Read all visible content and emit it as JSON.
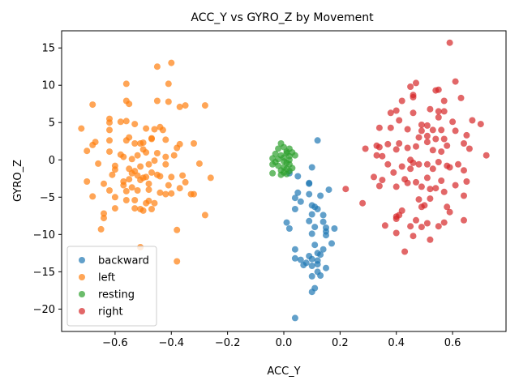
{
  "chart_data": {
    "type": "scatter",
    "title": "ACC_Y vs GYRO_Z by Movement",
    "xlabel": "ACC_Y",
    "ylabel": "GYRO_Z",
    "xlim": [
      -0.79,
      0.79
    ],
    "ylim": [
      -23,
      17.3
    ],
    "xticks": [
      -0.6,
      -0.4,
      -0.2,
      0.0,
      0.2,
      0.4,
      0.6
    ],
    "xtick_labels": [
      "−0.6",
      "−0.4",
      "−0.2",
      "0.0",
      "0.2",
      "0.4",
      "0.6"
    ],
    "yticks": [
      -20,
      -15,
      -10,
      -5,
      0,
      5,
      10,
      15
    ],
    "ytick_labels": [
      "−20",
      "−15",
      "−10",
      "−5",
      "0",
      "5",
      "10",
      "15"
    ],
    "grid": false,
    "legend_position": "lower-left",
    "series": [
      {
        "name": "backward",
        "color": "#1f77b4",
        "points": [
          [
            0.12,
            2.6
          ],
          [
            0.1,
            -1.0
          ],
          [
            0.02,
            -1.8
          ],
          [
            0.05,
            -2.2
          ],
          [
            0.09,
            -3.1
          ],
          [
            0.09,
            -3.2
          ],
          [
            0.05,
            -4.4
          ],
          [
            0.09,
            -4.6
          ],
          [
            0.13,
            -4.8
          ],
          [
            0.16,
            -4.0
          ],
          [
            0.04,
            -5.1
          ],
          [
            0.06,
            -5.6
          ],
          [
            0.1,
            -6.1
          ],
          [
            0.11,
            -6.3
          ],
          [
            0.12,
            -6.6
          ],
          [
            0.04,
            -6.6
          ],
          [
            0.1,
            -7.3
          ],
          [
            0.14,
            -7.4
          ],
          [
            0.01,
            -8.4
          ],
          [
            0.09,
            -8.2
          ],
          [
            0.14,
            -8.3
          ],
          [
            0.02,
            -9.2
          ],
          [
            0.11,
            -9.0
          ],
          [
            0.15,
            -9.1
          ],
          [
            0.18,
            -9.2
          ],
          [
            0.15,
            -9.6
          ],
          [
            0.1,
            -9.9
          ],
          [
            0.15,
            -10.1
          ],
          [
            0.11,
            -11.4
          ],
          [
            0.17,
            -11.2
          ],
          [
            0.04,
            -12.0
          ],
          [
            0.12,
            -12.5
          ],
          [
            0.14,
            -12.0
          ],
          [
            0.13,
            -12.7
          ],
          [
            0.09,
            -12.9
          ],
          [
            0.04,
            -13.2
          ],
          [
            0.06,
            -13.4
          ],
          [
            0.1,
            -13.3
          ],
          [
            0.12,
            -13.5
          ],
          [
            0.08,
            -13.8
          ],
          [
            0.07,
            -14.1
          ],
          [
            0.12,
            -14.0
          ],
          [
            0.1,
            -14.2
          ],
          [
            0.15,
            -14.5
          ],
          [
            0.12,
            -15.0
          ],
          [
            0.1,
            -15.6
          ],
          [
            0.13,
            -15.5
          ],
          [
            0.11,
            -17.2
          ],
          [
            0.1,
            -17.7
          ],
          [
            0.04,
            -21.2
          ]
        ]
      },
      {
        "name": "left",
        "color": "#ff7f0e",
        "points": [
          [
            -0.4,
            13.0
          ],
          [
            -0.45,
            12.5
          ],
          [
            -0.56,
            10.2
          ],
          [
            -0.41,
            10.2
          ],
          [
            -0.68,
            7.4
          ],
          [
            -0.56,
            7.9
          ],
          [
            -0.55,
            7.5
          ],
          [
            -0.45,
            7.9
          ],
          [
            -0.41,
            7.8
          ],
          [
            -0.37,
            7.1
          ],
          [
            -0.35,
            7.3
          ],
          [
            -0.28,
            7.3
          ],
          [
            -0.62,
            5.5
          ],
          [
            -0.62,
            5.0
          ],
          [
            -0.58,
            5.1
          ],
          [
            -0.56,
            5.2
          ],
          [
            -0.53,
            4.8
          ],
          [
            -0.49,
            4.2
          ],
          [
            -0.46,
            4.1
          ],
          [
            -0.44,
            4.4
          ],
          [
            -0.43,
            4.0
          ],
          [
            -0.72,
            4.2
          ],
          [
            -0.62,
            4.0
          ],
          [
            -0.67,
            2.4
          ],
          [
            -0.68,
            2.0
          ],
          [
            -0.7,
            1.2
          ],
          [
            -0.62,
            2.6
          ],
          [
            -0.56,
            2.6
          ],
          [
            -0.55,
            3.0
          ],
          [
            -0.53,
            2.2
          ],
          [
            -0.51,
            2.2
          ],
          [
            -0.5,
            2.3
          ],
          [
            -0.47,
            2.9
          ],
          [
            -0.47,
            2.8
          ],
          [
            -0.42,
            2.7
          ],
          [
            -0.37,
            2.1
          ],
          [
            -0.32,
            2.2
          ],
          [
            -0.38,
            1.6
          ],
          [
            -0.5,
            1.4
          ],
          [
            -0.49,
            1.0
          ],
          [
            -0.52,
            0.6
          ],
          [
            -0.58,
            0.7
          ],
          [
            -0.57,
            0.4
          ],
          [
            -0.62,
            1.1
          ],
          [
            -0.54,
            0.1
          ],
          [
            -0.45,
            0.9
          ],
          [
            -0.42,
            0.4
          ],
          [
            -0.39,
            0.6
          ],
          [
            -0.46,
            -0.1
          ],
          [
            -0.42,
            -0.6
          ],
          [
            -0.48,
            -0.6
          ],
          [
            -0.51,
            -0.9
          ],
          [
            -0.55,
            -1.2
          ],
          [
            -0.6,
            -0.8
          ],
          [
            -0.6,
            -1.3
          ],
          [
            -0.66,
            -0.5
          ],
          [
            -0.3,
            -0.5
          ],
          [
            -0.53,
            -1.5
          ],
          [
            -0.54,
            -1.8
          ],
          [
            -0.52,
            -2.1
          ],
          [
            -0.47,
            -1.7
          ],
          [
            -0.45,
            -2.0
          ],
          [
            -0.49,
            -2.3
          ],
          [
            -0.51,
            -2.7
          ],
          [
            -0.55,
            -2.6
          ],
          [
            -0.57,
            -2.9
          ],
          [
            -0.5,
            -2.4
          ],
          [
            -0.44,
            -2.2
          ],
          [
            -0.4,
            -2.3
          ],
          [
            -0.36,
            -2.1
          ],
          [
            -0.26,
            -2.4
          ],
          [
            -0.35,
            -3.0
          ],
          [
            -0.41,
            -3.4
          ],
          [
            -0.48,
            -3.2
          ],
          [
            -0.54,
            -3.7
          ],
          [
            -0.57,
            -3.4
          ],
          [
            -0.61,
            -2.0
          ],
          [
            -0.64,
            -3.2
          ],
          [
            -0.7,
            -2.9
          ],
          [
            -0.62,
            -4.1
          ],
          [
            -0.56,
            -4.2
          ],
          [
            -0.52,
            -4.1
          ],
          [
            -0.48,
            -4.0
          ],
          [
            -0.44,
            -4.4
          ],
          [
            -0.42,
            -4.6
          ],
          [
            -0.4,
            -4.5
          ],
          [
            -0.37,
            -3.8
          ],
          [
            -0.32,
            -4.6
          ],
          [
            -0.33,
            -4.6
          ],
          [
            -0.68,
            -4.9
          ],
          [
            -0.6,
            -5.0
          ],
          [
            -0.56,
            -5.4
          ],
          [
            -0.53,
            -5.4
          ],
          [
            -0.48,
            -5.5
          ],
          [
            -0.46,
            -5.8
          ],
          [
            -0.49,
            -5.8
          ],
          [
            -0.64,
            -7.2
          ],
          [
            -0.64,
            -7.8
          ],
          [
            -0.6,
            -6.5
          ],
          [
            -0.53,
            -6.5
          ],
          [
            -0.51,
            -6.6
          ],
          [
            -0.5,
            -6.8
          ],
          [
            -0.47,
            -6.6
          ],
          [
            -0.28,
            -7.4
          ],
          [
            -0.65,
            -9.3
          ],
          [
            -0.38,
            -9.4
          ],
          [
            -0.51,
            -11.7
          ],
          [
            -0.38,
            -13.6
          ]
        ]
      },
      {
        "name": "resting",
        "color": "#2ca02c",
        "points": [
          [
            -0.01,
            2.2
          ],
          [
            0.0,
            1.7
          ],
          [
            -0.02,
            1.5
          ],
          [
            0.02,
            1.5
          ],
          [
            0.03,
            1.0
          ],
          [
            -0.03,
            0.8
          ],
          [
            0.01,
            1.1
          ],
          [
            -0.01,
            0.6
          ],
          [
            0.0,
            0.3
          ],
          [
            0.02,
            0.5
          ],
          [
            0.04,
            0.6
          ],
          [
            -0.04,
            0.2
          ],
          [
            -0.03,
            -0.3
          ],
          [
            -0.04,
            -0.6
          ],
          [
            0.0,
            -0.2
          ],
          [
            0.01,
            -0.4
          ],
          [
            0.02,
            -0.6
          ],
          [
            -0.02,
            -0.8
          ],
          [
            0.0,
            -1.0
          ],
          [
            0.03,
            -1.1
          ],
          [
            0.01,
            -1.2
          ],
          [
            -0.01,
            -1.4
          ],
          [
            0.02,
            -1.5
          ],
          [
            0.0,
            -1.7
          ],
          [
            -0.04,
            -1.8
          ],
          [
            0.01,
            -1.9
          ],
          [
            -0.01,
            -2.0
          ],
          [
            0.02,
            0.0
          ],
          [
            -0.02,
            0.1
          ],
          [
            0.01,
            0.9
          ]
        ]
      },
      {
        "name": "right",
        "color": "#d62728",
        "points": [
          [
            0.59,
            15.7
          ],
          [
            0.61,
            10.5
          ],
          [
            0.47,
            10.3
          ],
          [
            0.45,
            9.8
          ],
          [
            0.55,
            9.4
          ],
          [
            0.54,
            9.3
          ],
          [
            0.46,
            8.7
          ],
          [
            0.46,
            8.4
          ],
          [
            0.57,
            7.9
          ],
          [
            0.42,
            7.9
          ],
          [
            0.63,
            8.3
          ],
          [
            0.4,
            6.6
          ],
          [
            0.38,
            6.3
          ],
          [
            0.46,
            6.3
          ],
          [
            0.52,
            6.8
          ],
          [
            0.55,
            6.5
          ],
          [
            0.57,
            6.5
          ],
          [
            0.41,
            5.3
          ],
          [
            0.49,
            4.7
          ],
          [
            0.51,
            4.6
          ],
          [
            0.55,
            5.7
          ],
          [
            0.6,
            5.1
          ],
          [
            0.67,
            5.3
          ],
          [
            0.7,
            4.8
          ],
          [
            0.34,
            4.3
          ],
          [
            0.38,
            4.3
          ],
          [
            0.44,
            4.1
          ],
          [
            0.49,
            3.9
          ],
          [
            0.53,
            4.0
          ],
          [
            0.56,
            4.0
          ],
          [
            0.61,
            3.9
          ],
          [
            0.48,
            3.0
          ],
          [
            0.51,
            3.2
          ],
          [
            0.54,
            2.8
          ],
          [
            0.57,
            2.8
          ],
          [
            0.65,
            3.3
          ],
          [
            0.37,
            2.1
          ],
          [
            0.41,
            2.2
          ],
          [
            0.47,
            1.8
          ],
          [
            0.51,
            2.4
          ],
          [
            0.58,
            1.9
          ],
          [
            0.64,
            2.2
          ],
          [
            0.33,
            1.9
          ],
          [
            0.34,
            1.7
          ],
          [
            0.29,
            1.5
          ],
          [
            0.4,
            1.4
          ],
          [
            0.44,
            1.6
          ],
          [
            0.53,
            1.3
          ],
          [
            0.56,
            1.1
          ],
          [
            0.66,
            1.5
          ],
          [
            0.72,
            0.6
          ],
          [
            0.33,
            0.6
          ],
          [
            0.35,
            0.5
          ],
          [
            0.45,
            0.0
          ],
          [
            0.46,
            -0.4
          ],
          [
            0.48,
            -0.6
          ],
          [
            0.51,
            -0.6
          ],
          [
            0.55,
            -0.3
          ],
          [
            0.58,
            -0.8
          ],
          [
            0.62,
            -0.6
          ],
          [
            0.37,
            -0.6
          ],
          [
            0.42,
            -0.9
          ],
          [
            0.45,
            -1.2
          ],
          [
            0.53,
            -1.2
          ],
          [
            0.59,
            -1.0
          ],
          [
            0.64,
            -1.4
          ],
          [
            0.32,
            -2.3
          ],
          [
            0.35,
            -2.7
          ],
          [
            0.39,
            -1.7
          ],
          [
            0.43,
            -2.6
          ],
          [
            0.47,
            -3.0
          ],
          [
            0.51,
            -2.4
          ],
          [
            0.56,
            -2.8
          ],
          [
            0.61,
            -3.4
          ],
          [
            0.65,
            -2.9
          ],
          [
            0.34,
            -3.5
          ],
          [
            0.4,
            -3.6
          ],
          [
            0.44,
            -3.1
          ],
          [
            0.49,
            -3.6
          ],
          [
            0.52,
            -3.9
          ],
          [
            0.54,
            -3.8
          ],
          [
            0.22,
            -3.9
          ],
          [
            0.57,
            -4.3
          ],
          [
            0.64,
            -4.8
          ],
          [
            0.48,
            -5.3
          ],
          [
            0.52,
            -5.2
          ],
          [
            0.5,
            -6.1
          ],
          [
            0.49,
            -6.3
          ],
          [
            0.42,
            -6.8
          ],
          [
            0.41,
            -7.4
          ],
          [
            0.4,
            -7.6
          ],
          [
            0.4,
            -7.9
          ],
          [
            0.58,
            -6.3
          ],
          [
            0.59,
            -7.0
          ],
          [
            0.64,
            -8.1
          ],
          [
            0.51,
            -8.5
          ],
          [
            0.47,
            -8.1
          ],
          [
            0.45,
            -8.9
          ],
          [
            0.55,
            -8.9
          ],
          [
            0.57,
            -8.4
          ],
          [
            0.36,
            -8.8
          ],
          [
            0.4,
            -9.8
          ],
          [
            0.46,
            -10.2
          ],
          [
            0.49,
            -9.0
          ],
          [
            0.52,
            -10.7
          ],
          [
            0.43,
            -12.3
          ],
          [
            0.28,
            -5.8
          ]
        ]
      }
    ]
  }
}
